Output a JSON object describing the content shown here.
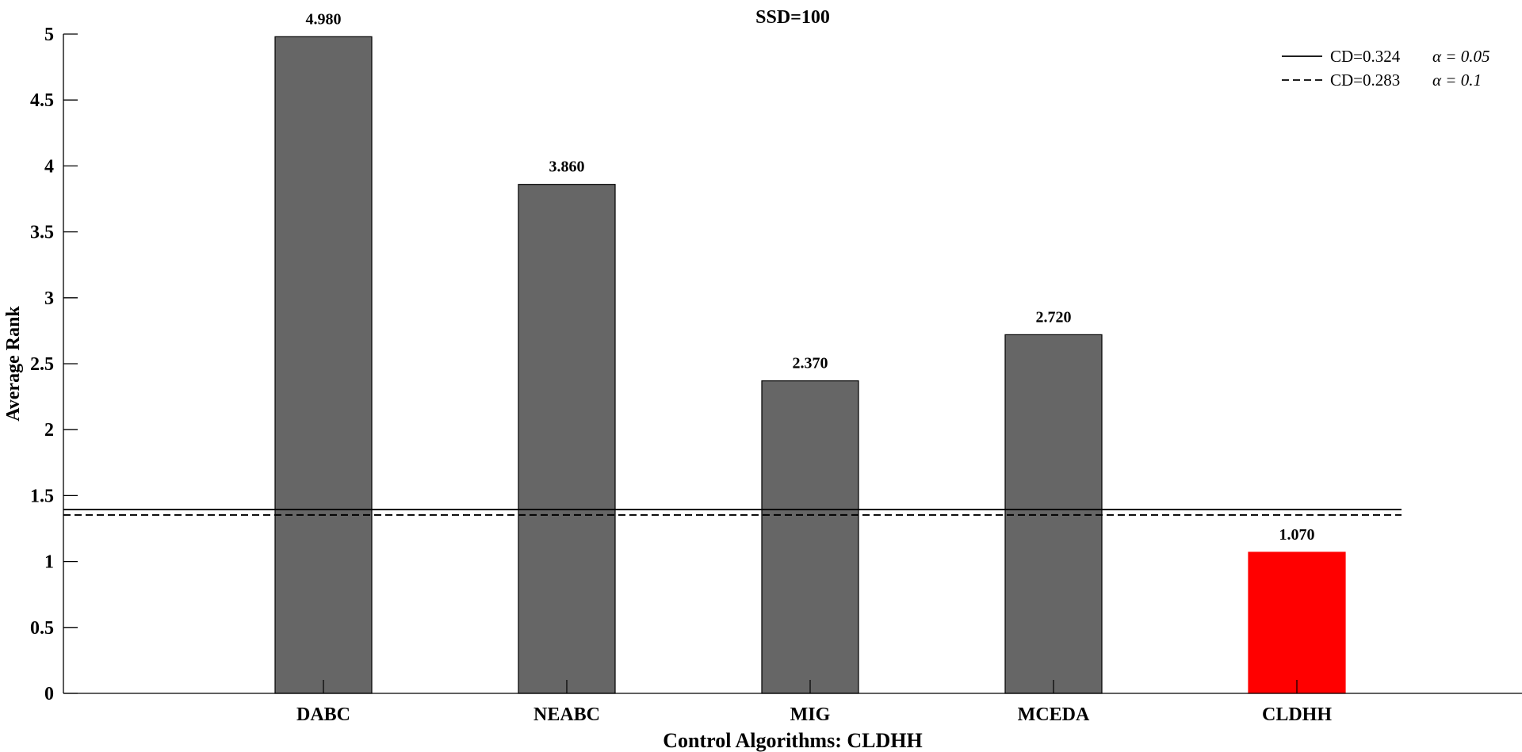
{
  "chart_data": {
    "type": "bar",
    "title": "SSD=100",
    "xlabel": "Control Algorithms: CLDHH",
    "ylabel": "Average Rank",
    "categories": [
      "DABC",
      "NEABC",
      "MIG",
      "MCEDA",
      "CLDHH"
    ],
    "values": [
      4.98,
      3.86,
      2.37,
      2.72,
      1.07
    ],
    "value_labels": [
      "4.980",
      "3.860",
      "2.370",
      "2.720",
      "1.070"
    ],
    "ylim": [
      0,
      5
    ],
    "yticks": [
      "0",
      "0.5",
      "1",
      "1.5",
      "2",
      "2.5",
      "3",
      "3.5",
      "4",
      "4.5",
      "5"
    ],
    "bar_colors": [
      "#666666",
      "#666666",
      "#666666",
      "#666666",
      "#ff0000"
    ],
    "grid": false,
    "legend_position": "top-right",
    "reference_lines": [
      {
        "value": 1.394,
        "style": "solid",
        "label": "CD=0.324",
        "alpha_label": "α = 0.05"
      },
      {
        "value": 1.353,
        "style": "dashed",
        "label": "CD=0.283",
        "alpha_label": "α = 0.1"
      }
    ]
  }
}
